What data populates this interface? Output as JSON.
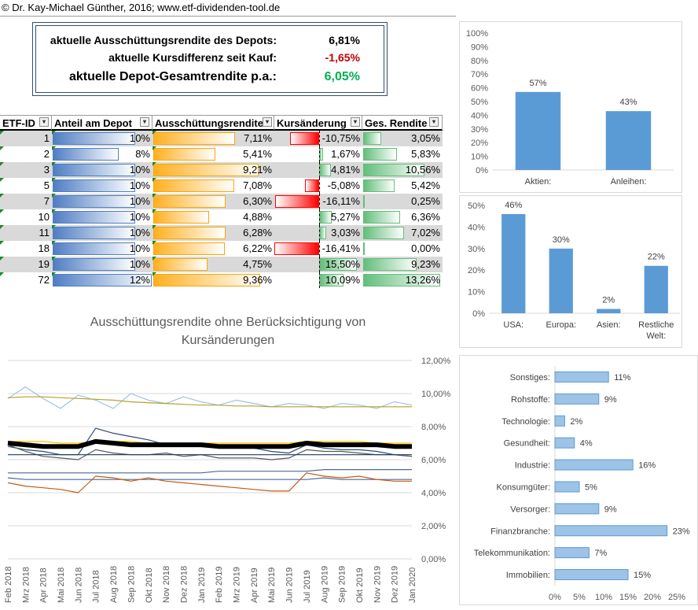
{
  "credit": "© Dr. Kay-Michael Günther, 2016; www.etf-dividenden-tool.de",
  "summary": {
    "rows": [
      {
        "label": "aktuelle Ausschüttungsrendite des Depots:",
        "value": "6,81%",
        "color": "#000000"
      },
      {
        "label": "aktuelle Kursdifferenz seit Kauf:",
        "value": "-1,65%",
        "color": "#c00000"
      },
      {
        "label": "aktuelle Depot-Gesamtrendite p.a.:",
        "value": "6,05%",
        "color": "#00b050"
      }
    ]
  },
  "table": {
    "headers": [
      "ETF-ID",
      "Anteil am Depot",
      "Ausschüttungsrendite",
      "Kursänderung",
      "Ges. Rendite"
    ],
    "rows": [
      {
        "id": "1",
        "anteil": "10%",
        "ausschuettung": "7,11%",
        "kurs": "-10,75%",
        "ges": "3,05%",
        "a": 10,
        "au": 7.11,
        "k": -10.75,
        "g": 3.05
      },
      {
        "id": "2",
        "anteil": "8%",
        "ausschuettung": "5,41%",
        "kurs": "1,67%",
        "ges": "5,83%",
        "a": 8,
        "au": 5.41,
        "k": 1.67,
        "g": 5.83
      },
      {
        "id": "3",
        "anteil": "10%",
        "ausschuettung": "9,21%",
        "kurs": "4,81%",
        "ges": "10,56%",
        "a": 10,
        "au": 9.21,
        "k": 4.81,
        "g": 10.56
      },
      {
        "id": "5",
        "anteil": "10%",
        "ausschuettung": "7,08%",
        "kurs": "-5,08%",
        "ges": "5,42%",
        "a": 10,
        "au": 7.08,
        "k": -5.08,
        "g": 5.42
      },
      {
        "id": "7",
        "anteil": "10%",
        "ausschuettung": "6,30%",
        "kurs": "-16,11%",
        "ges": "0,25%",
        "a": 10,
        "au": 6.3,
        "k": -16.11,
        "g": 0.25
      },
      {
        "id": "10",
        "anteil": "10%",
        "ausschuettung": "4,88%",
        "kurs": "5,27%",
        "ges": "6,36%",
        "a": 10,
        "au": 4.88,
        "k": 5.27,
        "g": 6.36
      },
      {
        "id": "11",
        "anteil": "10%",
        "ausschuettung": "6,28%",
        "kurs": "3,03%",
        "ges": "7,02%",
        "a": 10,
        "au": 6.28,
        "k": 3.03,
        "g": 7.02
      },
      {
        "id": "18",
        "anteil": "10%",
        "ausschuettung": "6,22%",
        "kurs": "-16,41%",
        "ges": "0,00%",
        "a": 10,
        "au": 6.22,
        "k": -16.41,
        "g": 0.0
      },
      {
        "id": "19",
        "anteil": "10%",
        "ausschuettung": "4,75%",
        "kurs": "15,50%",
        "ges": "9,23%",
        "a": 10,
        "au": 4.75,
        "k": 15.5,
        "g": 9.23
      },
      {
        "id": "72",
        "anteil": "12%",
        "ausschuettung": "9,36%",
        "kurs": "10,09%",
        "ges": "13,26%",
        "a": 12,
        "au": 9.36,
        "k": 10.09,
        "g": 13.26
      }
    ]
  },
  "colors": {
    "bar": "#5b9bd5",
    "bar_light": "#9dc3e6",
    "axis_text": "#595959"
  },
  "chart_data": [
    {
      "type": "line",
      "title": "Ausschüttungsrendite ohne Berücksichtigung von",
      "title_line2": "Kursänderungen",
      "x": [
        "Feb 2018",
        "Mrz 2018",
        "Apr 2018",
        "Mai 2018",
        "Jun 2018",
        "Jul 2018",
        "Aug 2018",
        "Sep 2018",
        "Okt 2018",
        "Nov 2018",
        "Dez 2018",
        "Jan 2019",
        "Feb 2019",
        "Mrz 2019",
        "Apr 2019",
        "Mai 2019",
        "Jun 2019",
        "Jul 2019",
        "Aug 2019",
        "Sep 2019",
        "Okt 2019",
        "Nov 2019",
        "Dez 2019",
        "Jan 2020"
      ],
      "ylim": [
        0,
        12
      ],
      "yticks": [
        "0,00%",
        "2,00%",
        "4,00%",
        "6,00%",
        "8,00%",
        "10,00%",
        "12,00%"
      ],
      "series": [
        {
          "color": "#9dc3e6",
          "width": 1.2,
          "values": [
            9.7,
            10.4,
            9.7,
            9.1,
            9.9,
            9.6,
            9.1,
            10.0,
            9.6,
            9.4,
            9.8,
            9.5,
            9.3,
            9.6,
            9.4,
            9.2,
            9.4,
            9.3,
            9.1,
            9.4,
            9.3,
            9.1,
            9.5,
            9.3
          ]
        },
        {
          "color": "#b8a02a",
          "width": 1.2,
          "values": [
            9.75,
            9.8,
            9.8,
            9.75,
            9.7,
            9.65,
            9.6,
            9.5,
            9.45,
            9.4,
            9.35,
            9.3,
            9.3,
            9.25,
            9.25,
            9.2,
            9.2,
            9.2,
            9.2,
            9.2,
            9.2,
            9.2,
            9.2,
            9.2
          ]
        },
        {
          "color": "#ffc000",
          "width": 1.2,
          "values": [
            7.1,
            7.1,
            7.1,
            7.0,
            7.0,
            7.1,
            7.1,
            7.1,
            7.0,
            7.0,
            7.0,
            7.0,
            7.0,
            7.0,
            7.0,
            7.0,
            7.0,
            7.1,
            7.1,
            7.1,
            7.1,
            7.0,
            7.0,
            7.0
          ]
        },
        {
          "color": "#2e4a75",
          "width": 1.2,
          "values": [
            6.8,
            6.6,
            6.5,
            6.3,
            6.3,
            7.9,
            7.6,
            7.4,
            7.2,
            6.9,
            6.8,
            6.9,
            6.8,
            6.7,
            6.7,
            6.5,
            6.4,
            6.9,
            6.7,
            6.6,
            6.6,
            6.5,
            6.3,
            6.2
          ]
        },
        {
          "color": "#595959",
          "width": 1.2,
          "values": [
            6.9,
            6.5,
            6.2,
            6.1,
            6.0,
            6.6,
            6.4,
            6.3,
            6.3,
            6.4,
            6.2,
            6.3,
            6.1,
            6.1,
            6.1,
            6.0,
            6.1,
            6.6,
            6.5,
            6.5,
            6.4,
            6.3,
            6.3,
            6.2
          ]
        },
        {
          "color": "#1f3864",
          "width": 1.2,
          "values": [
            6.3,
            6.3,
            6.3,
            6.3,
            6.3,
            6.3,
            6.3,
            6.3,
            6.3,
            6.3,
            6.3,
            6.3,
            6.3,
            6.3,
            6.3,
            6.3,
            6.3,
            6.3,
            6.3,
            6.3,
            6.3,
            6.3,
            6.3,
            6.3
          ]
        },
        {
          "color": "#4a6a9a",
          "width": 1.2,
          "values": [
            5.2,
            5.2,
            5.2,
            5.2,
            5.2,
            5.2,
            5.2,
            5.2,
            5.2,
            5.2,
            5.2,
            5.2,
            5.3,
            5.3,
            5.3,
            5.3,
            5.3,
            5.3,
            5.4,
            5.4,
            5.4,
            5.4,
            5.4,
            5.4
          ]
        },
        {
          "color": "#4a6a9a",
          "width": 1.2,
          "values": [
            4.9,
            4.8,
            4.8,
            4.8,
            4.8,
            4.8,
            4.8,
            4.8,
            4.8,
            4.8,
            4.8,
            4.8,
            4.8,
            4.8,
            4.8,
            4.8,
            4.8,
            4.8,
            4.9,
            4.8,
            4.8,
            4.8,
            4.8,
            4.8
          ]
        },
        {
          "color": "#c55a11",
          "width": 1.2,
          "values": [
            4.6,
            4.4,
            4.3,
            4.2,
            4.0,
            5.0,
            4.9,
            4.7,
            4.9,
            4.7,
            4.6,
            4.5,
            4.4,
            4.3,
            4.2,
            4.1,
            4.1,
            5.2,
            5.0,
            4.9,
            5.0,
            4.8,
            4.7,
            4.7
          ]
        },
        {
          "color": "#000000",
          "width": 6,
          "values": [
            7.0,
            6.9,
            6.8,
            6.8,
            6.8,
            7.1,
            7.0,
            6.9,
            6.9,
            6.9,
            6.9,
            6.9,
            6.8,
            6.8,
            6.8,
            6.8,
            6.8,
            7.0,
            6.9,
            6.9,
            6.9,
            6.9,
            6.8,
            6.8
          ]
        }
      ]
    },
    {
      "type": "bar",
      "categories": [
        "Aktien:",
        "Anleihen:"
      ],
      "values": [
        57,
        43
      ],
      "labels": [
        "57%",
        "43%"
      ],
      "ylim": [
        0,
        100
      ],
      "yticks": [
        "0%",
        "10%",
        "20%",
        "30%",
        "40%",
        "50%",
        "60%",
        "70%",
        "80%",
        "90%",
        "100%"
      ]
    },
    {
      "type": "bar",
      "categories": [
        "USA:",
        "Europa:",
        "Asien:",
        "Restliche Welt:"
      ],
      "category_lines": [
        [
          "USA:"
        ],
        [
          "Europa:"
        ],
        [
          "Asien:"
        ],
        [
          "Restliche",
          "Welt:"
        ]
      ],
      "values": [
        46,
        30,
        2,
        22
      ],
      "labels": [
        "46%",
        "30%",
        "2%",
        "22%"
      ],
      "ylim": [
        0,
        50
      ],
      "yticks": [
        "0%",
        "10%",
        "20%",
        "30%",
        "40%",
        "50%"
      ]
    },
    {
      "type": "bar",
      "orientation": "horizontal",
      "categories": [
        "Sonstiges:",
        "Rohstoffe:",
        "Technologie:",
        "Gesundheit:",
        "Industrie:",
        "Konsumgüter:",
        "Versorger:",
        "Finanzbranche:",
        "Telekommunikation:",
        "Immobilien:"
      ],
      "values": [
        11,
        9,
        2,
        4,
        16,
        5,
        9,
        23,
        7,
        15
      ],
      "labels": [
        "11%",
        "9%",
        "2%",
        "4%",
        "16%",
        "5%",
        "9%",
        "23%",
        "7%",
        "15%"
      ],
      "xlim": [
        0,
        25
      ],
      "xticks": [
        "0%",
        "5%",
        "10%",
        "15%",
        "20%",
        "25%"
      ]
    }
  ]
}
